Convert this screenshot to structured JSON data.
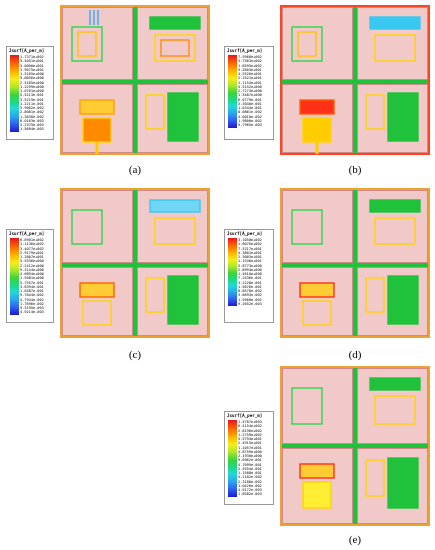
{
  "legend_title": "Jsurf[A_per_m]",
  "panels": [
    {
      "id": "a",
      "caption": "(a)",
      "values": [
        "1.7371e+002",
        "9.4051e+001",
        "5.0000e+001",
        "3.9675e+001",
        "1.5165e+000",
        "9.0856e+000",
        "2.5185e+000",
        "1.2299e+000",
        "1.0761e+000",
        "5.5213e-001",
        "3.5219e-001",
        "1.2211e-001",
        "5.9062e-002",
        "2.8081e-002",
        "1.3838e-002",
        "6.0163e-003",
        "3.2375e-003",
        "1.5604e-003"
      ]
    },
    {
      "id": "b",
      "caption": "(b)",
      "values": [
        "7.5968e+002",
        "3.7563e+002",
        "1.8595e+002",
        "9.2803e+001",
        "4.5526e+001",
        "2.2521e+001",
        "1.1154e+001",
        "5.5152e+000",
        "2.7274e+000",
        "1.3487e+000",
        "6.6779e-001",
        "3.3040e-001",
        "1.6344e-001",
        "8.0861e-002",
        "4.0010e-002",
        "1.9800e-002",
        "9.7965e-003"
      ]
    },
    {
      "id": "c",
      "caption": "(c)",
      "values": [
        "6.8901e+002",
        "1.1136e+002",
        "3.4077e+002",
        "2.9179e+001",
        "1.2807e+001",
        "5.5536e+000",
        "2.2412e+000",
        "9.3144e+000",
        "4.6894e+000",
        "1.5981e+000",
        "5.7557e-001",
        "3.6394e-001",
        "1.8487e-001",
        "9.7044e-002",
        "4.7944e-002",
        "1.7696e-002",
        "9.3195e-003",
        "4.9214e-003"
      ]
    },
    {
      "id": "d",
      "caption": "(d)",
      "values": [
        "3.1050e+002",
        "1.8076e+002",
        "7.5217e+001",
        "4.3801e+001",
        "2.3003e+001",
        "1.1546e+001",
        "5.8773e+000",
        "2.8994e+000",
        "1.4610e+000",
        "7.2536e-001",
        "3.2228e-001",
        "1.5876e-001",
        "8.8578e-002",
        "3.8693e-002",
        "1.5960e-002",
        "9.2652e-003"
      ]
    },
    {
      "id": "e",
      "caption": "(e)",
      "values": [
        "1.4787e+003",
        "6.4154e+002",
        "2.8196e+002",
        "1.2759e+002",
        "5.5794e+001",
        "2.4915e+001",
        "1.1057e+001",
        "4.8759e+000",
        "2.1930e+000",
        "9.6962e-001",
        "4.7099e-001",
        "2.5554e-001",
        "1.1588e-001",
        "5.2182e-002",
        "2.3180e-002",
        "1.0426e-002",
        "4.9172e-003",
        "1.8582e-003"
      ]
    }
  ]
}
